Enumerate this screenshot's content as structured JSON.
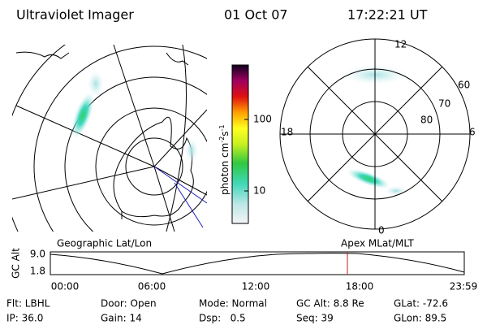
{
  "header": {
    "instrument": "Ultraviolet Imager",
    "date": "01 Oct 07",
    "time": "17:22:21 UT"
  },
  "colorbar": {
    "label": [
      "photon cm",
      "-2",
      "s",
      "-1"
    ],
    "ticks": [
      "100",
      "10"
    ]
  },
  "polar_plot": {
    "mlt_labels": [
      "12",
      "18",
      "6",
      "0"
    ],
    "mlat_labels": [
      "60",
      "70",
      "80"
    ]
  },
  "altitude_plot": {
    "left_label": "Geographic Lat/Lon",
    "right_label": "Apex MLat/MLT",
    "y_label": "GC Alt",
    "y_ticks": [
      "9.0",
      "1.8"
    ],
    "x_ticks": [
      "00:00",
      "06:00",
      "12:00",
      "18:00",
      "23:59"
    ]
  },
  "status": {
    "rows": [
      [
        "Flt: LBHL",
        "Door: Open",
        "Mode: Normal",
        "GC Alt: 8.8 Re",
        "GLat: -72.6"
      ],
      [
        "IP: 36.0",
        "Gain: 14",
        "Dsp:   0.5",
        "Seq: 39",
        "GLon: 89.5"
      ]
    ]
  }
}
